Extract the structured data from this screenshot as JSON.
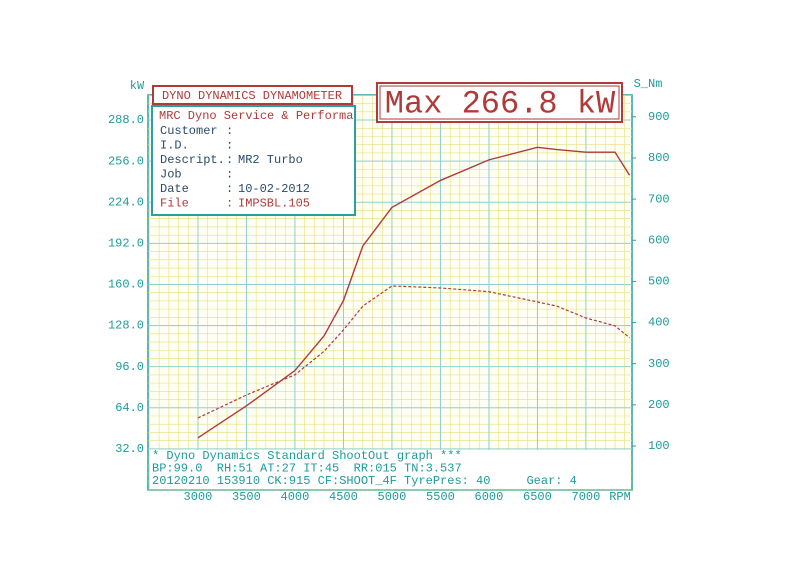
{
  "chart_data": {
    "type": "line",
    "title": "DYNO DYNAMICS DYNAMOMETER",
    "subtitle": "Max 266.8 kW",
    "info": {
      "heading": "MRC Dyno Service & Performa",
      "rows": [
        {
          "label": "Customer"
        },
        {
          "label": "I.D."
        },
        {
          "label": "Descript.",
          "value": "MR2 Turbo"
        },
        {
          "label": "Job"
        },
        {
          "label": "Date",
          "value": "10-02-2012"
        },
        {
          "label": "File",
          "value": "IMPSBL.105"
        }
      ]
    },
    "footer": [
      "* Dyno Dynamics Standard ShootOut graph ***",
      "BP:99.0  RH:51 AT:27 IT:45  RR:015 TN:3.537",
      "20120210 153910 CK:915 CF:SHOOT_4F TyrePres: 40     Gear: 4"
    ],
    "ylabel": "kW",
    "y2label": "S_Nm",
    "xlabel": "RPM",
    "x": [
      3000,
      3500,
      4000,
      4300,
      4500,
      4700,
      5000,
      5500,
      6000,
      6500,
      6700,
      7000,
      7300,
      7450
    ],
    "series": [
      {
        "color": "#b03a3a",
        "values": [
          40.6,
          65.5,
          93,
          120,
          147.5,
          190,
          220,
          241,
          257,
          266.8,
          265,
          263,
          263,
          245
        ]
      },
      {
        "color": "#b03a3a",
        "axis": "y2",
        "values": [
          168,
          224,
          273,
          330,
          382,
          440,
          489,
          484,
          475,
          450,
          440,
          411,
          392,
          363
        ]
      }
    ],
    "xlim": [
      2485,
      7475
    ],
    "xticks": [
      3000,
      3500,
      4000,
      4500,
      5000,
      5500,
      6000,
      6500,
      7000
    ],
    "ylim": [
      0,
      307.5
    ],
    "yticks": [
      {
        "value": 32,
        "label": "32.0"
      },
      {
        "value": 64,
        "label": "64.0"
      },
      {
        "value": 96,
        "label": "96.0"
      },
      {
        "value": 128,
        "label": "128.0"
      },
      {
        "value": 160,
        "label": "160.0"
      },
      {
        "value": 192,
        "label": "192.0"
      },
      {
        "value": 224,
        "label": "224.0"
      },
      {
        "value": 256,
        "label": "256.0"
      },
      {
        "value": 288,
        "label": "288.0"
      }
    ],
    "y2lim": [
      -7,
      953
    ],
    "y2ticks": [
      100,
      200,
      300,
      400,
      500,
      600,
      700,
      800,
      900
    ],
    "grid": true
  }
}
